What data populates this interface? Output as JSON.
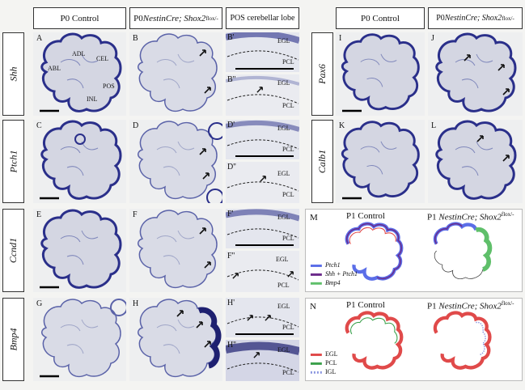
{
  "headers": {
    "p0_control": "P0 Control",
    "p0_mutant_prefix": "P0 ",
    "p0_mutant_gene": "NestinCre; Shox2",
    "p0_mutant_sup": "flox/-",
    "pos_lobe": "POS cerebellar lobe",
    "p0_control_right": "P0 Control",
    "p0_mutant_right_prefix": "P0 ",
    "p0_mutant_right_gene": "NestinCre; Shox2",
    "p0_mutant_right_sup": "flox/-"
  },
  "row_labels": {
    "shh": "Shh",
    "ptch1": "Ptch1",
    "ccnd1": "Ccnd1",
    "bmp4": "Bmp4",
    "pax6": "Pax6",
    "calb1": "Calb1"
  },
  "panel_labels": {
    "A": "A",
    "B": "B",
    "C": "C",
    "D": "D",
    "E": "E",
    "F": "F",
    "G": "G",
    "H": "H",
    "Bp": "B'",
    "Bpp": "B''",
    "Dp": "D'",
    "Dpp": "D''",
    "Fp": "F'",
    "Fpp": "F''",
    "Hp": "H'",
    "Hpp": "H''",
    "I": "I",
    "J": "J",
    "K": "K",
    "L": "L",
    "M": "M",
    "N": "N"
  },
  "lobe_labels": {
    "abl": "ABL",
    "adl": "ADL",
    "cel": "CEL",
    "pos": "POS",
    "inl": "INL"
  },
  "layer_labels": {
    "egl": "EGL",
    "pcl": "PCL"
  },
  "diagram_m": {
    "title_control": "P1 Control",
    "title_mutant_prefix": "P1 ",
    "title_mutant_gene": "NestinCre; Shox2",
    "title_mutant_sup": "flox/-",
    "legend": [
      {
        "label": "Ptch1",
        "color": "#5b6ee8"
      },
      {
        "label": "Shh + Ptch1",
        "color": "#6b2a8a"
      },
      {
        "label": "Bmp4",
        "color": "#5fbf6a"
      }
    ]
  },
  "diagram_n": {
    "title_control": "P1 Control",
    "title_mutant_prefix": "P1 ",
    "title_mutant_gene": "NestinCre; Shox2",
    "title_mutant_sup": "flox/-",
    "legend": [
      {
        "label": "EGL",
        "color": "#e04a4a"
      },
      {
        "label": "PCL",
        "color": "#3aa04a"
      },
      {
        "label": "IGL",
        "color": "#8a96e0"
      }
    ]
  }
}
